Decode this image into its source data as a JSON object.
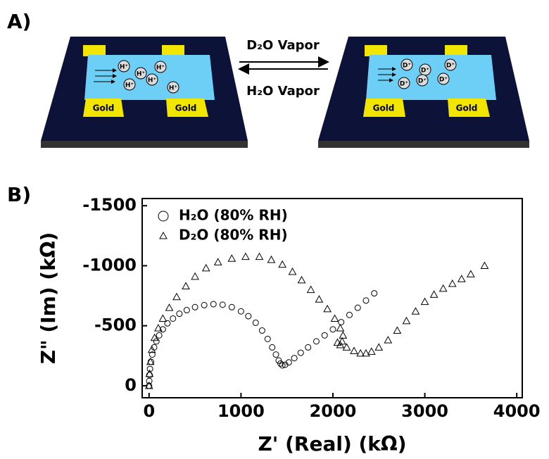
{
  "panels": {
    "a": "A)",
    "b": "B)"
  },
  "diagram": {
    "arrow_top": "D₂O Vapor",
    "arrow_bottom": "H₂O Vapor",
    "left": {
      "ions": [
        "H⁺",
        "H⁺",
        "H⁺",
        "H⁺",
        "H⁺",
        "H⁺"
      ],
      "pads": [
        "Gold",
        "Gold"
      ]
    },
    "right": {
      "ions": [
        "D⁺",
        "D⁺",
        "D⁺",
        "D⁺",
        "D⁺",
        "D⁺"
      ],
      "pads": [
        "Gold",
        "Gold"
      ]
    }
  },
  "chart_data": {
    "type": "scatter",
    "xlabel": "Z' (Real) (kΩ)",
    "ylabel": "Z\" (Im) (kΩ)",
    "xlim": [
      -75,
      4060
    ],
    "ylim": [
      100,
      -1560
    ],
    "xticks": [
      0,
      1000,
      2000,
      3000,
      4000
    ],
    "yticks": [
      0,
      -500,
      -1000,
      -1500
    ],
    "legend": "upper left",
    "series": [
      {
        "name": "H₂O (80% RH)",
        "marker": "circle",
        "color": "#000000",
        "x": [
          0,
          2,
          5,
          10,
          20,
          35,
          55,
          80,
          110,
          150,
          200,
          260,
          330,
          410,
          500,
          600,
          700,
          800,
          900,
          1000,
          1080,
          1160,
          1230,
          1290,
          1340,
          1380,
          1410,
          1430,
          1450,
          1480,
          1520,
          1580,
          1650,
          1730,
          1820,
          1910,
          2000,
          2090,
          2180,
          2270,
          2360,
          2450
        ],
        "values": [
          0,
          -40,
          -90,
          -140,
          -200,
          -260,
          -320,
          -370,
          -420,
          -470,
          -520,
          -560,
          -600,
          -630,
          -655,
          -672,
          -680,
          -675,
          -655,
          -620,
          -580,
          -525,
          -460,
          -390,
          -320,
          -260,
          -210,
          -185,
          -170,
          -175,
          -195,
          -230,
          -275,
          -320,
          -370,
          -420,
          -470,
          -530,
          -590,
          -650,
          -710,
          -770
        ]
      },
      {
        "name": "D₂O (80% RH)",
        "marker": "triangle",
        "color": "#000000",
        "x": [
          0,
          5,
          15,
          30,
          60,
          100,
          150,
          220,
          300,
          400,
          500,
          620,
          750,
          900,
          1050,
          1200,
          1330,
          1450,
          1560,
          1660,
          1760,
          1850,
          1940,
          2020,
          2080,
          2110,
          2100,
          2050,
          2080,
          2150,
          2230,
          2300,
          2360,
          2420,
          2500,
          2600,
          2700,
          2800,
          2900,
          3000,
          3100,
          3200,
          3300,
          3400,
          3500,
          3650
        ],
        "values": [
          0,
          -100,
          -200,
          -300,
          -400,
          -480,
          -560,
          -650,
          -740,
          -830,
          -910,
          -980,
          -1030,
          -1060,
          -1075,
          -1075,
          -1050,
          -1010,
          -950,
          -880,
          -800,
          -720,
          -640,
          -560,
          -480,
          -420,
          -370,
          -360,
          -340,
          -320,
          -290,
          -270,
          -270,
          -285,
          -320,
          -380,
          -460,
          -540,
          -620,
          -700,
          -760,
          -810,
          -850,
          -890,
          -930,
          -1000
        ]
      }
    ]
  }
}
